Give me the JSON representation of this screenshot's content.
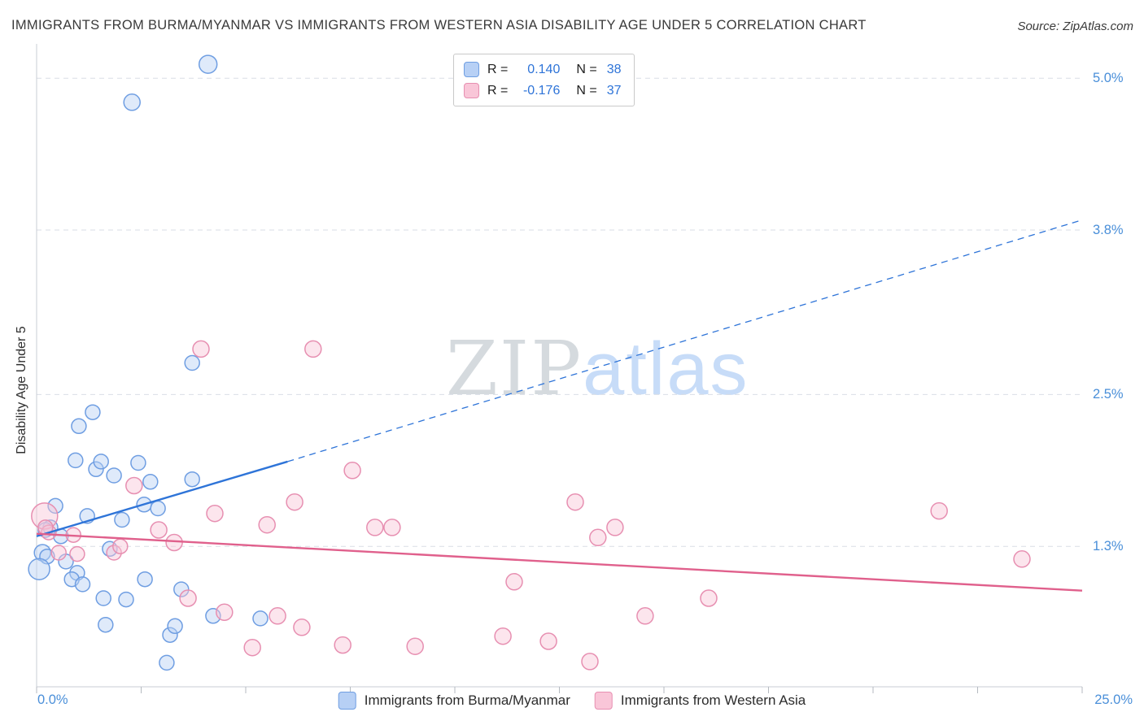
{
  "header": {
    "title": "IMMIGRANTS FROM BURMA/MYANMAR VS IMMIGRANTS FROM WESTERN ASIA DISABILITY AGE UNDER 5 CORRELATION CHART",
    "source": "Source: ZipAtlas.com"
  },
  "watermark": {
    "zip": "ZIP",
    "atlas": "atlas"
  },
  "legend_box": {
    "rows": [
      {
        "r_label": "R =",
        "r_value": "0.140",
        "n_label": "N =",
        "n_value": "38",
        "color": "#b7d0f5",
        "border": "#6f9ee2"
      },
      {
        "r_label": "R =",
        "r_value": "-0.176",
        "n_label": "N =",
        "n_value": "37",
        "color": "#f9c6d8",
        "border": "#e78fb1"
      }
    ]
  },
  "bottom_legend": [
    {
      "label": "Immigrants from Burma/Myanmar",
      "color": "#b7d0f5",
      "border": "#6f9ee2"
    },
    {
      "label": "Immigrants from Western Asia",
      "color": "#f9c6d8",
      "border": "#e78fb1"
    }
  ],
  "chart_data": {
    "type": "scatter",
    "title": "Immigrants from Burma/Myanmar vs Immigrants from Western Asia Disability Age Under 5 Correlation Chart",
    "xlabel": "",
    "ylabel": "Disability Age Under 5",
    "grid": "dashed-horizontal",
    "legend_position": "top-center and bottom-center",
    "x_axis": {
      "min": 0,
      "max": 25,
      "tick_step": 2.5,
      "min_label": "0.0%",
      "max_label": "25.0%"
    },
    "y_axis": {
      "min": 0.19,
      "max": 5.22,
      "ticks": [
        {
          "label": "5.0%",
          "value": 5.0
        },
        {
          "label": "3.8%",
          "value": 3.8
        },
        {
          "label": "2.5%",
          "value": 2.5
        },
        {
          "label": "1.3%",
          "value": 1.3
        }
      ]
    },
    "series": [
      {
        "id": "burma-myanmar",
        "name": "Immigrants from Burma/Myanmar",
        "r": 0.14,
        "n": 38,
        "fill": "#b7d0f5",
        "stroke": "#6f9ee2",
        "line": "#2e74d8",
        "points": [
          [
            4.1,
            5.11,
            11
          ],
          [
            2.28,
            4.81,
            10
          ],
          [
            1.34,
            2.36,
            9
          ],
          [
            1.01,
            2.25,
            9
          ],
          [
            0.93,
            1.98,
            9
          ],
          [
            1.42,
            1.91,
            9
          ],
          [
            1.54,
            1.97,
            9
          ],
          [
            1.85,
            1.86,
            9
          ],
          [
            2.43,
            1.96,
            9
          ],
          [
            2.72,
            1.81,
            9
          ],
          [
            3.72,
            1.83,
            9
          ],
          [
            3.72,
            2.75,
            9
          ],
          [
            2.57,
            1.63,
            9
          ],
          [
            2.04,
            1.51,
            9
          ],
          [
            0.33,
            1.45,
            9
          ],
          [
            0.58,
            1.38,
            9
          ],
          [
            0.45,
            1.62,
            9
          ],
          [
            0.14,
            1.25,
            10
          ],
          [
            0.25,
            1.22,
            9
          ],
          [
            0.06,
            1.12,
            13
          ],
          [
            0.97,
            1.09,
            9
          ],
          [
            0.84,
            1.04,
            9
          ],
          [
            1.75,
            1.28,
            9
          ],
          [
            1.21,
            1.54,
            9
          ],
          [
            2.14,
            0.88,
            9
          ],
          [
            1.65,
            0.68,
            9
          ],
          [
            1.6,
            0.89,
            9
          ],
          [
            3.46,
            0.96,
            9
          ],
          [
            2.59,
            1.04,
            9
          ],
          [
            3.19,
            0.6,
            9
          ],
          [
            3.31,
            0.67,
            9
          ],
          [
            4.22,
            0.75,
            9
          ],
          [
            5.35,
            0.73,
            9
          ],
          [
            3.11,
            0.38,
            9
          ],
          [
            0.21,
            1.43,
            9
          ],
          [
            0.7,
            1.18,
            9
          ],
          [
            1.1,
            1.0,
            9
          ],
          [
            2.9,
            1.6,
            9
          ]
        ],
        "trend": {
          "solid": [
            [
              0,
              1.38
            ],
            [
              6.0,
              1.97
            ]
          ],
          "dashed": [
            [
              6.0,
              1.97
            ],
            [
              25.0,
              3.88
            ]
          ]
        }
      },
      {
        "id": "western-asia",
        "name": "Immigrants from Western Asia",
        "r": -0.176,
        "n": 37,
        "fill": "#f9c6d8",
        "stroke": "#e78fb1",
        "line": "#e0608c",
        "points": [
          [
            0.19,
            1.54,
            16
          ],
          [
            3.93,
            2.86,
            10
          ],
          [
            6.61,
            2.86,
            10
          ],
          [
            2.33,
            1.78,
            10
          ],
          [
            7.55,
            1.9,
            10
          ],
          [
            12.88,
            1.65,
            10
          ],
          [
            13.83,
            1.45,
            10
          ],
          [
            13.42,
            1.37,
            10
          ],
          [
            21.58,
            1.58,
            10
          ],
          [
            23.56,
            1.2,
            10
          ],
          [
            16.07,
            0.89,
            10
          ],
          [
            14.55,
            0.75,
            10
          ],
          [
            11.42,
            1.02,
            10
          ],
          [
            8.09,
            1.45,
            10
          ],
          [
            8.5,
            1.45,
            10
          ],
          [
            6.17,
            1.65,
            10
          ],
          [
            5.51,
            1.47,
            10
          ],
          [
            4.26,
            1.56,
            10
          ],
          [
            2.92,
            1.43,
            10
          ],
          [
            0.29,
            1.41,
            9
          ],
          [
            0.88,
            1.39,
            9
          ],
          [
            0.53,
            1.25,
            9
          ],
          [
            0.97,
            1.24,
            9
          ],
          [
            1.85,
            1.25,
            9
          ],
          [
            2.0,
            1.3,
            9
          ],
          [
            3.29,
            1.33,
            10
          ],
          [
            3.62,
            0.89,
            10
          ],
          [
            4.49,
            0.78,
            10
          ],
          [
            5.76,
            0.75,
            10
          ],
          [
            6.34,
            0.66,
            10
          ],
          [
            5.16,
            0.5,
            10
          ],
          [
            7.32,
            0.52,
            10
          ],
          [
            9.05,
            0.51,
            10
          ],
          [
            11.15,
            0.59,
            10
          ],
          [
            12.24,
            0.55,
            10
          ],
          [
            13.23,
            0.39,
            10
          ],
          [
            0.21,
            1.45,
            9
          ]
        ],
        "trend": {
          "solid": [
            [
              0,
              1.4
            ],
            [
              25.0,
              0.95
            ]
          ]
        }
      }
    ]
  }
}
